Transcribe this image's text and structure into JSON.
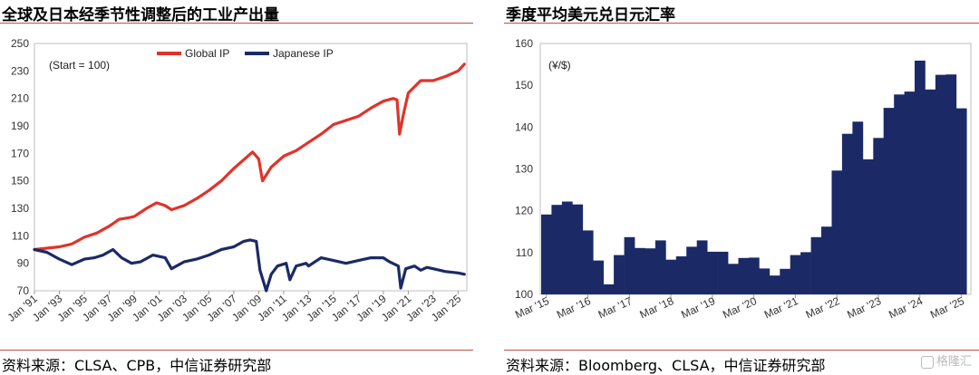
{
  "left_title": "全球及日本经季节性调整后的工业产出量",
  "right_title": "季度平均美元兑日元汇率",
  "left_source": "资料来源：CLSA、CPB，中信证券研究部",
  "right_source": "资料来源：Bloomberg、CLSA，中信证券研究部",
  "watermark": "格隆汇",
  "colors": {
    "global": "#e0332a",
    "japan": "#1b2a66",
    "bar": "#1b2a66",
    "rule": "#c0504d"
  },
  "chart_data": [
    {
      "type": "line",
      "annotation": "(Start = 100)",
      "ylim": [
        70,
        250
      ],
      "yticks": [
        70,
        90,
        110,
        130,
        150,
        170,
        190,
        210,
        230,
        250
      ],
      "xlim": [
        1991,
        2025.7
      ],
      "xtick_labels": [
        "Jan '91",
        "Jan '93",
        "Jan '95",
        "Jan '97",
        "Jan '99",
        "Jan '01",
        "Jan '03",
        "Jan '05",
        "Jan '07",
        "Jan '09",
        "Jan '11",
        "Jan '13",
        "Jan '15",
        "Jan '17",
        "Jan '19",
        "Jan '21",
        "Jan '23",
        "Jan '25"
      ],
      "xtick_years": [
        1991,
        1993,
        1995,
        1997,
        1999,
        2001,
        2003,
        2005,
        2007,
        2009,
        2011,
        2013,
        2015,
        2017,
        2019,
        2021,
        2023,
        2025
      ],
      "legend": "top",
      "series": [
        {
          "name": "Global IP",
          "x": [
            1991,
            1992,
            1993,
            1994,
            1995,
            1996,
            1997,
            1997.8,
            1998.5,
            1999,
            2000,
            2000.8,
            2001.5,
            2002,
            2003,
            2004,
            2005,
            2006,
            2007,
            2008,
            2008.5,
            2009,
            2009.3,
            2010,
            2011,
            2012,
            2013,
            2014,
            2015,
            2016,
            2017,
            2018,
            2019,
            2019.8,
            2020.1,
            2020.3,
            2020.6,
            2021,
            2022,
            2023,
            2024,
            2025,
            2025.5
          ],
          "values": [
            100,
            101,
            102,
            104,
            109,
            112,
            117,
            122,
            123,
            124,
            130,
            134,
            132,
            129,
            132,
            137,
            143,
            150,
            159,
            167,
            171,
            166,
            150,
            160,
            168,
            172,
            178,
            184,
            191,
            194,
            197,
            203,
            208,
            210,
            209,
            184,
            198,
            214,
            223,
            223,
            226,
            230,
            235
          ]
        },
        {
          "name": "Japanese IP",
          "x": [
            1991,
            1992,
            1993,
            1994,
            1995,
            1995.8,
            1996.5,
            1997.3,
            1998,
            1998.8,
            1999.5,
            2000.5,
            2001.5,
            2002,
            2003,
            2004,
            2005,
            2006,
            2007,
            2007.8,
            2008.3,
            2008.8,
            2009.1,
            2009.6,
            2010,
            2010.5,
            2011.2,
            2011.5,
            2012,
            2012.8,
            2013,
            2014,
            2015,
            2016,
            2017,
            2018,
            2019,
            2019.5,
            2020.2,
            2020.4,
            2020.8,
            2021.5,
            2022,
            2022.5,
            2023,
            2024,
            2025,
            2025.5
          ],
          "values": [
            100,
            98,
            93,
            89,
            93,
            94,
            96,
            100,
            94,
            90,
            91,
            96,
            94,
            86,
            91,
            93,
            96,
            100,
            102,
            106,
            107,
            106,
            85,
            70,
            82,
            88,
            90,
            78,
            88,
            90,
            88,
            94,
            92,
            90,
            92,
            94,
            94,
            91,
            88,
            72,
            86,
            88,
            85,
            87,
            86,
            84,
            83,
            82
          ]
        }
      ]
    },
    {
      "type": "bar",
      "annotation": "(¥/$)",
      "ylim": [
        100,
        160
      ],
      "yticks": [
        100,
        110,
        120,
        130,
        140,
        150,
        160
      ],
      "xtick_labels": [
        "Mar '15",
        "Mar '16",
        "Mar '17",
        "Mar '18",
        "Mar '19",
        "Mar '20",
        "Mar '21",
        "Mar '22",
        "Mar '23",
        "Mar '24",
        "Mar '25"
      ],
      "values": [
        119.1,
        121.4,
        122.2,
        121.5,
        115.3,
        108.1,
        102.4,
        109.4,
        113.7,
        111.1,
        111.0,
        112.9,
        108.3,
        109.1,
        111.4,
        112.9,
        110.2,
        110.2,
        107.3,
        108.7,
        108.8,
        106.2,
        104.5,
        106.1,
        109.4,
        110.1,
        113.7,
        116.2,
        129.6,
        138.4,
        141.3,
        132.3,
        137.4,
        144.6,
        147.8,
        148.5,
        155.9,
        149.0,
        152.5,
        152.6,
        144.5
      ],
      "label_every": 4
    }
  ]
}
